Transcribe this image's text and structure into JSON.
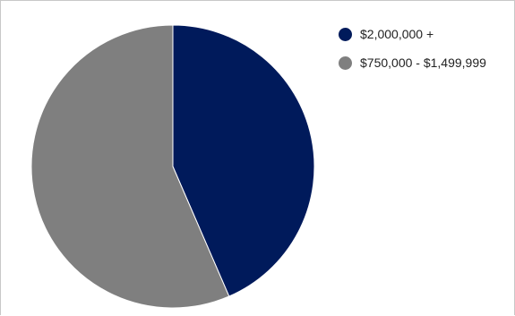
{
  "chart_data": {
    "type": "pie",
    "categories": [
      "$2,000,000 +",
      "$750,000 - $1,499,999"
    ],
    "values": [
      43.5,
      56.5
    ],
    "colors": [
      "#001a5b",
      "#7f7f7f"
    ],
    "title": "",
    "legend_position": "top-right"
  }
}
